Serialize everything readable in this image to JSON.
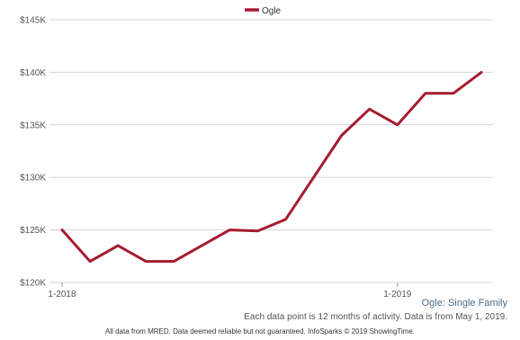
{
  "chart_data": {
    "type": "line",
    "title": "",
    "xlabel": "",
    "ylabel": "",
    "x": [
      "1-2018",
      "2-2018",
      "3-2018",
      "4-2018",
      "5-2018",
      "6-2018",
      "7-2018",
      "8-2018",
      "9-2018",
      "10-2018",
      "11-2018",
      "12-2018",
      "1-2019",
      "2-2019",
      "3-2019",
      "4-2019"
    ],
    "x_tick_labels": [
      {
        "index": 0,
        "label": "1-2018"
      },
      {
        "index": 12,
        "label": "1-2019"
      }
    ],
    "series": [
      {
        "name": "Ogle",
        "color": "#a51c30",
        "values": [
          125000,
          122000,
          123500,
          122000,
          122000,
          123500,
          125000,
          124900,
          126000,
          130000,
          134000,
          136500,
          135000,
          138000,
          138000,
          140000
        ]
      }
    ],
    "ylim": [
      120000,
      145000
    ],
    "y_ticks": [
      {
        "value": 120000,
        "label": "$120K"
      },
      {
        "value": 125000,
        "label": "$125K"
      },
      {
        "value": 130000,
        "label": "$130K"
      },
      {
        "value": 135000,
        "label": "$135K"
      },
      {
        "value": 140000,
        "label": "$140K"
      },
      {
        "value": 145000,
        "label": "$145K"
      }
    ],
    "grid": true,
    "legend_position": "top-center"
  },
  "subtitle": "Ogle: Single Family",
  "note": "Each data point is 12 months of activity. Data is from May 1, 2019.",
  "footer": "All data from MRED. Data deemed reliable but not guaranteed. InfoSparks © 2019 ShowingTime."
}
